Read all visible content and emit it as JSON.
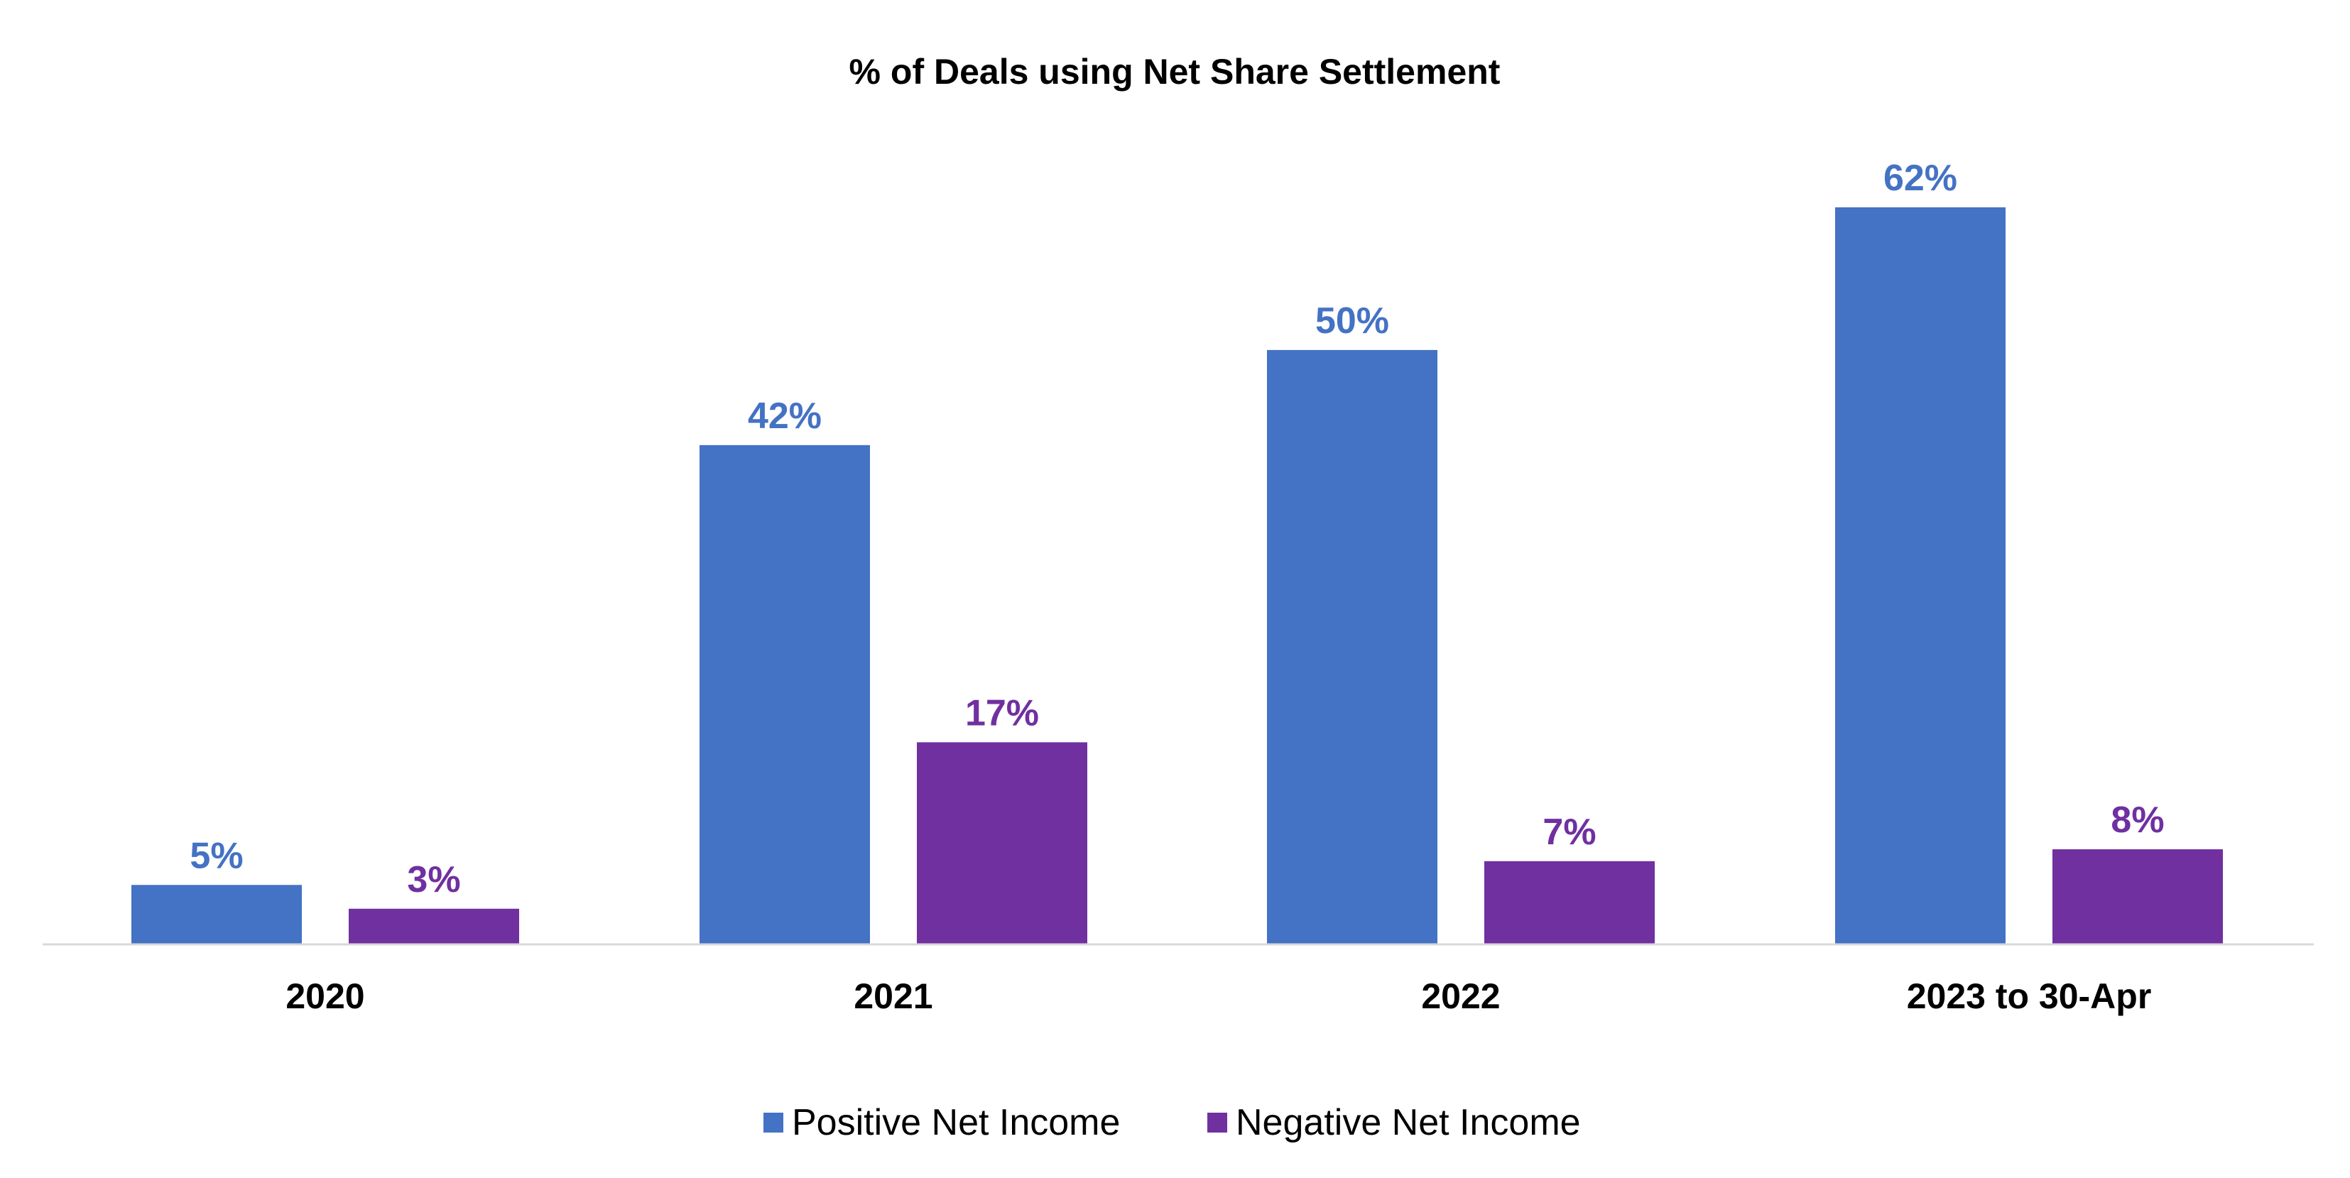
{
  "chart_data": {
    "type": "bar",
    "title": "% of Deals using Net Share Settlement",
    "categories": [
      "2020",
      "2021",
      "2022",
      "2023 to 30-Apr"
    ],
    "series": [
      {
        "name": "Positive Net Income",
        "color": "#4472C4",
        "values": [
          5,
          42,
          50,
          62
        ],
        "labels": [
          "5%",
          "42%",
          "50%",
          "62%"
        ]
      },
      {
        "name": "Negative Net Income",
        "color": "#7030A0",
        "values": [
          3,
          17,
          7,
          8
        ],
        "labels": [
          "3%",
          "17%",
          "7%",
          "8%"
        ]
      }
    ],
    "xlabel": "",
    "ylabel": "",
    "ylim": [
      0,
      62
    ],
    "grid": false,
    "legend_position": "bottom-center",
    "baseline_color": "#D9D9D9"
  }
}
